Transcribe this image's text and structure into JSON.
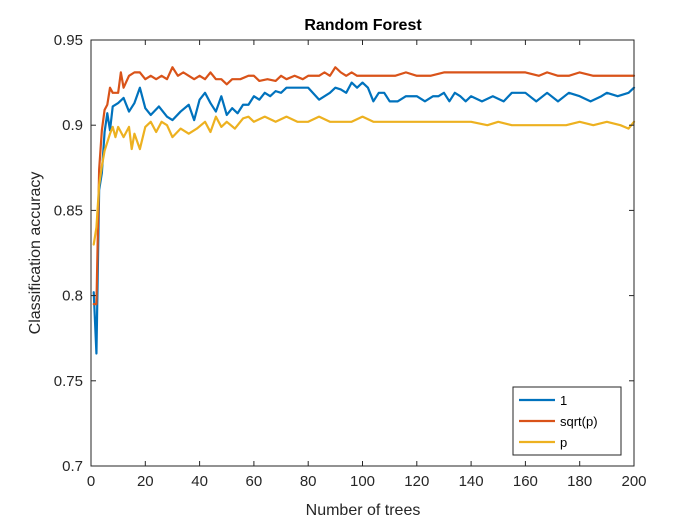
{
  "chart_data": {
    "type": "line",
    "title": "Random Forest",
    "xlabel": "Number of trees",
    "ylabel": "Classification accuracy",
    "xlim": [
      0,
      200
    ],
    "ylim": [
      0.7,
      0.95
    ],
    "xticks": [
      0,
      20,
      40,
      60,
      80,
      100,
      120,
      140,
      160,
      180,
      200
    ],
    "yticks": [
      0.7,
      0.75,
      0.8,
      0.85,
      0.9,
      0.95
    ],
    "xtick_labels": [
      "0",
      "20",
      "40",
      "60",
      "80",
      "100",
      "120",
      "140",
      "160",
      "180",
      "200"
    ],
    "ytick_labels": [
      "0.7",
      "0.75",
      "0.8",
      "0.85",
      "0.9",
      "0.95"
    ],
    "grid": false,
    "legend_position": "bottom-right",
    "series": [
      {
        "name": "1",
        "color": "#0072BD",
        "x": [
          1,
          2,
          3,
          4,
          5,
          6,
          7,
          8,
          10,
          12,
          14,
          16,
          18,
          20,
          22,
          25,
          28,
          30,
          33,
          36,
          38,
          40,
          42,
          44,
          46,
          48,
          50,
          52,
          54,
          56,
          58,
          60,
          62,
          64,
          66,
          68,
          70,
          72,
          75,
          78,
          80,
          84,
          88,
          90,
          92,
          94,
          96,
          98,
          100,
          102,
          104,
          106,
          108,
          110,
          113,
          116,
          120,
          123,
          126,
          128,
          130,
          132,
          134,
          136,
          138,
          140,
          144,
          148,
          152,
          155,
          158,
          160,
          164,
          168,
          172,
          176,
          180,
          184,
          188,
          190,
          194,
          198,
          200
        ],
        "values": [
          0.802,
          0.766,
          0.862,
          0.872,
          0.896,
          0.907,
          0.897,
          0.911,
          0.913,
          0.916,
          0.908,
          0.913,
          0.922,
          0.91,
          0.906,
          0.911,
          0.905,
          0.903,
          0.908,
          0.912,
          0.903,
          0.915,
          0.919,
          0.913,
          0.908,
          0.917,
          0.906,
          0.91,
          0.907,
          0.912,
          0.912,
          0.917,
          0.915,
          0.919,
          0.917,
          0.92,
          0.919,
          0.922,
          0.922,
          0.922,
          0.922,
          0.915,
          0.919,
          0.922,
          0.921,
          0.919,
          0.925,
          0.922,
          0.925,
          0.922,
          0.914,
          0.919,
          0.919,
          0.914,
          0.914,
          0.917,
          0.917,
          0.914,
          0.917,
          0.917,
          0.919,
          0.914,
          0.919,
          0.917,
          0.914,
          0.917,
          0.914,
          0.917,
          0.914,
          0.919,
          0.919,
          0.919,
          0.914,
          0.919,
          0.914,
          0.919,
          0.917,
          0.914,
          0.917,
          0.919,
          0.917,
          0.919,
          0.922
        ]
      },
      {
        "name": "sqrt(p)",
        "color": "#D95319",
        "x": [
          1,
          2,
          3,
          4,
          5,
          6,
          7,
          8,
          10,
          11,
          12,
          14,
          16,
          18,
          20,
          22,
          24,
          26,
          28,
          30,
          32,
          34,
          36,
          38,
          40,
          42,
          44,
          46,
          48,
          50,
          52,
          55,
          58,
          60,
          62,
          65,
          68,
          70,
          72,
          75,
          78,
          80,
          84,
          86,
          88,
          90,
          92,
          94,
          96,
          98,
          100,
          104,
          108,
          112,
          116,
          120,
          125,
          130,
          135,
          140,
          145,
          150,
          155,
          160,
          165,
          168,
          172,
          176,
          180,
          185,
          190,
          195,
          200
        ],
        "values": [
          0.795,
          0.795,
          0.874,
          0.897,
          0.909,
          0.912,
          0.922,
          0.919,
          0.919,
          0.931,
          0.922,
          0.929,
          0.931,
          0.931,
          0.927,
          0.929,
          0.927,
          0.929,
          0.927,
          0.934,
          0.929,
          0.931,
          0.929,
          0.927,
          0.929,
          0.927,
          0.931,
          0.927,
          0.927,
          0.924,
          0.927,
          0.927,
          0.929,
          0.929,
          0.926,
          0.927,
          0.926,
          0.929,
          0.927,
          0.929,
          0.927,
          0.929,
          0.929,
          0.931,
          0.929,
          0.934,
          0.931,
          0.929,
          0.931,
          0.929,
          0.929,
          0.929,
          0.929,
          0.929,
          0.931,
          0.929,
          0.929,
          0.931,
          0.931,
          0.931,
          0.931,
          0.931,
          0.931,
          0.931,
          0.929,
          0.931,
          0.929,
          0.929,
          0.931,
          0.929,
          0.929,
          0.929,
          0.929
        ]
      },
      {
        "name": "p",
        "color": "#EDB120",
        "x": [
          1,
          2,
          3,
          4,
          5,
          6,
          7,
          8,
          9,
          10,
          12,
          14,
          15,
          16,
          18,
          20,
          22,
          24,
          26,
          28,
          30,
          33,
          36,
          39,
          42,
          44,
          46,
          48,
          50,
          53,
          56,
          58,
          60,
          64,
          68,
          72,
          76,
          80,
          84,
          88,
          92,
          96,
          100,
          104,
          110,
          116,
          122,
          128,
          134,
          140,
          146,
          150,
          155,
          160,
          165,
          170,
          175,
          180,
          185,
          190,
          195,
          198,
          200
        ],
        "values": [
          0.83,
          0.84,
          0.865,
          0.876,
          0.885,
          0.89,
          0.895,
          0.899,
          0.893,
          0.899,
          0.893,
          0.899,
          0.886,
          0.895,
          0.886,
          0.899,
          0.902,
          0.896,
          0.902,
          0.9,
          0.893,
          0.898,
          0.895,
          0.898,
          0.902,
          0.896,
          0.905,
          0.899,
          0.902,
          0.898,
          0.904,
          0.905,
          0.902,
          0.905,
          0.902,
          0.905,
          0.902,
          0.902,
          0.905,
          0.902,
          0.902,
          0.902,
          0.905,
          0.902,
          0.902,
          0.902,
          0.902,
          0.902,
          0.902,
          0.902,
          0.9,
          0.902,
          0.9,
          0.9,
          0.9,
          0.9,
          0.9,
          0.902,
          0.9,
          0.902,
          0.9,
          0.898,
          0.902
        ]
      }
    ]
  }
}
